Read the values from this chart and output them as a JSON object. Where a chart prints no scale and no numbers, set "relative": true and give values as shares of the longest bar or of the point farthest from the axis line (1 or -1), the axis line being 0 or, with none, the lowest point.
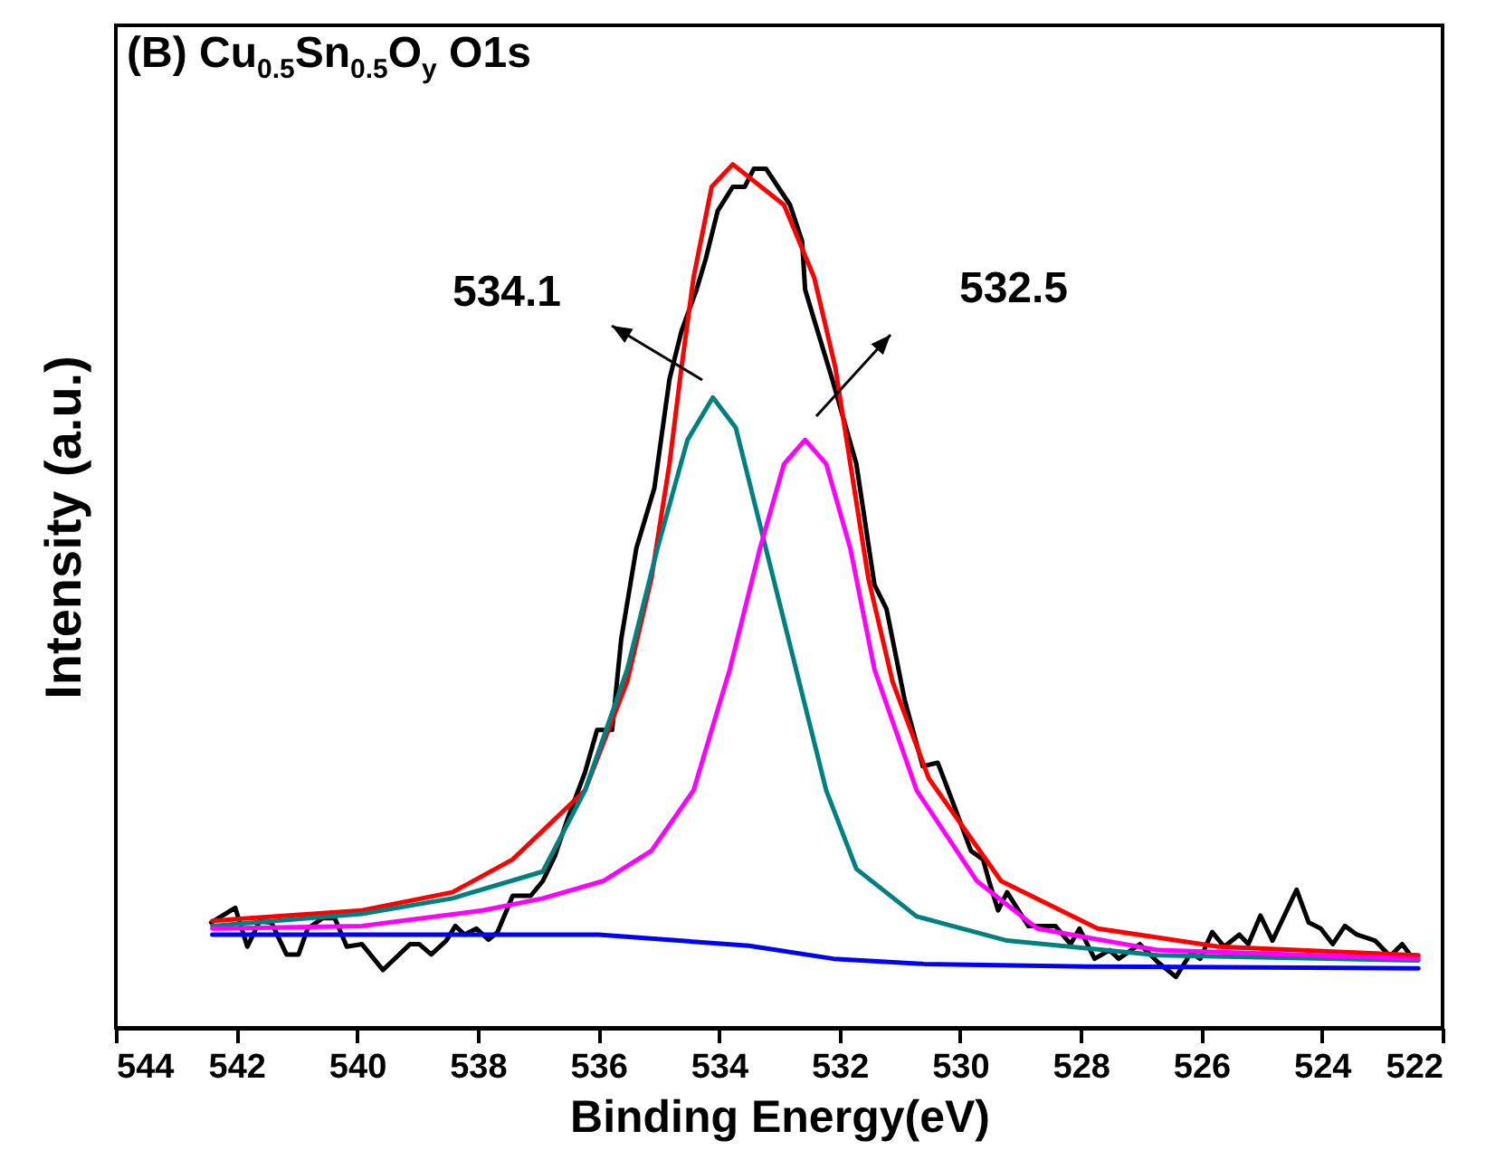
{
  "chart_data": {
    "type": "line",
    "title": "(B) Cu$_{0.5}$Sn$_{0.5}$O$_{y}$ O1s",
    "xlabel": "Binding Energy(eV)",
    "ylabel": "Intensity (a.u.)",
    "relative": true,
    "xlim": [
      544,
      522
    ],
    "xticks": [
      544,
      542,
      540,
      538,
      536,
      534,
      532,
      530,
      528,
      526,
      524,
      522
    ],
    "annotations": [
      "534.1",
      "532.5"
    ],
    "series": [
      {
        "color": "#000000",
        "x": [
          542.42,
          542.02,
          541.82,
          541.62,
          541.42,
          541.17,
          540.97,
          540.82,
          540.57,
          540.37,
          540.17,
          539.92,
          539.57,
          539.12,
          538.97,
          538.77,
          538.52,
          538.37,
          538.22,
          538.02,
          537.82,
          537.67,
          537.52,
          537.42,
          537.12,
          536.92,
          536.72,
          536.52,
          536.22,
          536.02,
          535.77,
          535.62,
          535.37,
          535.07,
          534.82,
          534.62,
          534.37,
          534.22,
          534.02,
          533.77,
          533.57,
          533.42,
          533.22,
          532.82,
          532.62,
          532.57,
          532.42,
          532.12,
          531.72,
          531.42,
          531.22,
          530.92,
          530.62,
          530.37,
          530.12,
          529.82,
          529.62,
          529.52,
          529.37,
          529.22,
          528.87,
          528.42,
          528.17,
          528.02,
          527.77,
          527.52,
          527.37,
          527.02,
          526.72,
          526.42,
          526.17,
          526.02,
          525.82,
          525.62,
          525.37,
          525.22,
          525.02,
          524.82,
          524.42,
          524.22,
          524.02,
          523.82,
          523.62,
          523.42,
          523.12,
          522.87,
          522.67,
          522.52
        ],
        "values": [
          0.122,
          0.139,
          0.094,
          0.123,
          0.122,
          0.085,
          0.085,
          0.115,
          0.127,
          0.127,
          0.094,
          0.097,
          0.067,
          0.097,
          0.097,
          0.085,
          0.101,
          0.118,
          0.108,
          0.115,
          0.102,
          0.111,
          0.136,
          0.153,
          0.153,
          0.17,
          0.199,
          0.24,
          0.296,
          0.345,
          0.345,
          0.45,
          0.555,
          0.625,
          0.751,
          0.807,
          0.855,
          0.89,
          0.946,
          0.974,
          0.974,
          0.995,
          0.995,
          0.953,
          0.911,
          0.855,
          0.82,
          0.751,
          0.653,
          0.513,
          0.485,
          0.38,
          0.303,
          0.307,
          0.261,
          0.205,
          0.195,
          0.17,
          0.136,
          0.157,
          0.118,
          0.118,
          0.097,
          0.115,
          0.08,
          0.09,
          0.08,
          0.097,
          0.076,
          0.059,
          0.087,
          0.08,
          0.111,
          0.094,
          0.108,
          0.097,
          0.13,
          0.101,
          0.16,
          0.122,
          0.115,
          0.097,
          0.118,
          0.108,
          0.101,
          0.083,
          0.097,
          0.083
        ]
      },
      {
        "color": "#ff0000",
        "x": [
          542.4,
          539.92,
          538.42,
          537.42,
          536.22,
          535.52,
          535.12,
          534.82,
          534.62,
          534.42,
          534.12,
          533.77,
          532.92,
          532.42,
          532.07,
          531.82,
          531.52,
          531.12,
          530.52,
          529.32,
          527.72,
          525.72,
          522.4
        ],
        "values": [
          0.124,
          0.136,
          0.157,
          0.195,
          0.275,
          0.401,
          0.52,
          0.653,
          0.765,
          0.869,
          0.974,
          1.0,
          0.953,
          0.869,
          0.765,
          0.653,
          0.52,
          0.401,
          0.289,
          0.17,
          0.115,
          0.094,
          0.084
        ]
      },
      {
        "color": "#008080",
        "x": [
          542.4,
          539.92,
          538.42,
          536.92,
          536.22,
          535.52,
          535.02,
          534.52,
          534.1,
          533.72,
          533.22,
          532.72,
          532.22,
          531.72,
          530.72,
          529.22,
          526.72,
          522.4
        ],
        "values": [
          0.118,
          0.132,
          0.15,
          0.181,
          0.275,
          0.415,
          0.555,
          0.681,
          0.73,
          0.695,
          0.555,
          0.415,
          0.275,
          0.184,
          0.129,
          0.101,
          0.084,
          0.078
        ]
      },
      {
        "color": "#ff00ff",
        "x": [
          542.4,
          539.92,
          537.92,
          536.92,
          535.92,
          535.12,
          534.42,
          533.82,
          533.32,
          532.92,
          532.57,
          532.22,
          531.82,
          531.42,
          530.72,
          529.72,
          528.72,
          526.72,
          522.4
        ],
        "values": [
          0.115,
          0.118,
          0.136,
          0.15,
          0.17,
          0.205,
          0.275,
          0.415,
          0.555,
          0.653,
          0.681,
          0.653,
          0.555,
          0.415,
          0.275,
          0.17,
          0.115,
          0.09,
          0.08
        ]
      },
      {
        "color": "#0000ff",
        "x": [
          542.4,
          536.0,
          533.5,
          532.1,
          530.6,
          527.9,
          522.4
        ],
        "values": [
          0.108,
          0.108,
          0.095,
          0.08,
          0.074,
          0.071,
          0.069
        ]
      }
    ]
  }
}
